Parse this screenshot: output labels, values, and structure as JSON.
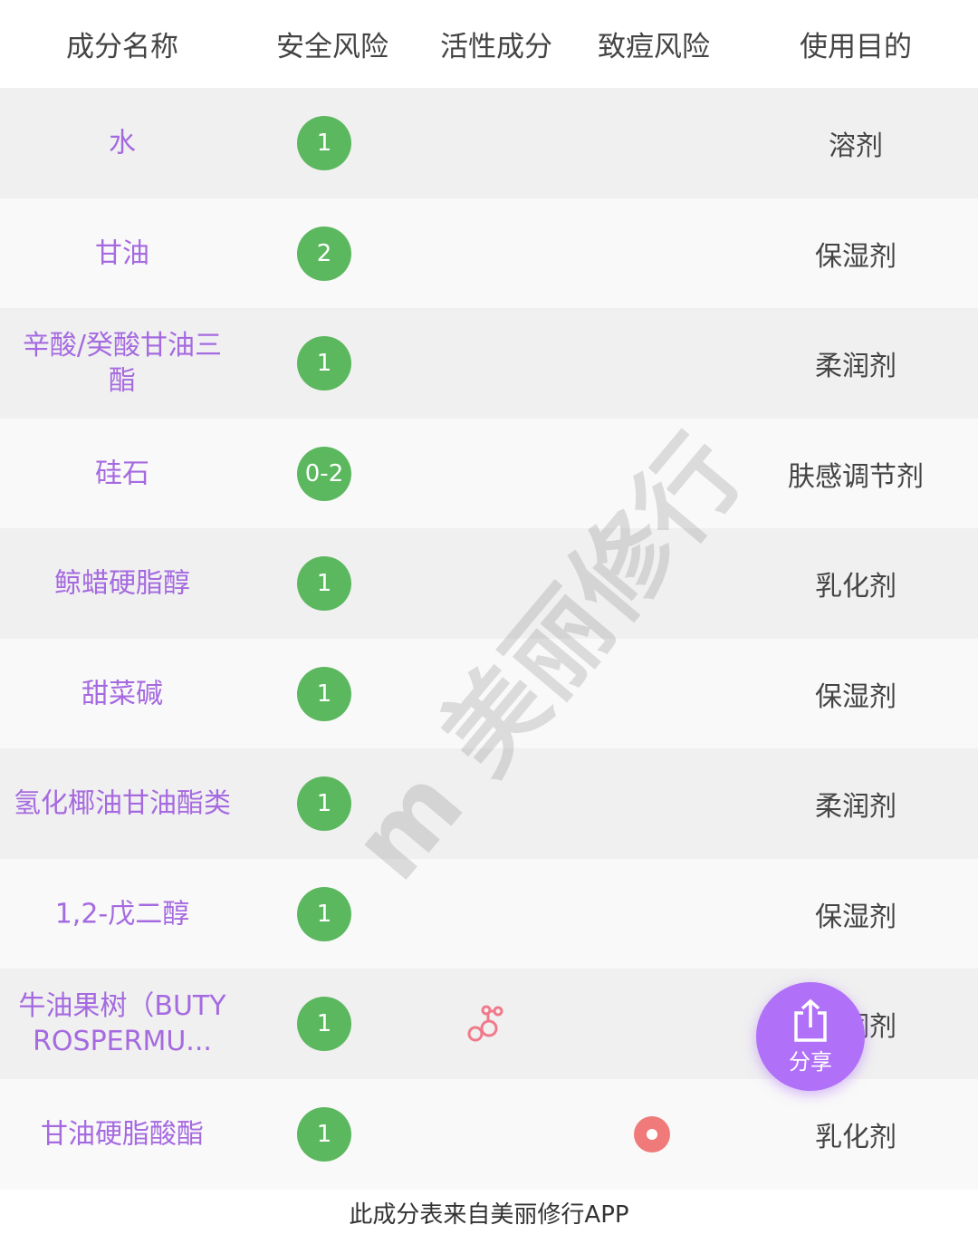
{
  "header": [
    "成分名称",
    "安全风险",
    "活性成分",
    "致痘风险",
    "使用目的"
  ],
  "rows": [
    {
      "name": "水",
      "safety": "1",
      "purpose": "溶剂",
      "active": false,
      "acne": false
    },
    {
      "name": "甘油",
      "safety": "2",
      "purpose": "保湿剂",
      "active": false,
      "acne": false
    },
    {
      "name": "辛酸/癸酸甘油三酯",
      "safety": "1",
      "purpose": "柔润剂",
      "active": false,
      "acne": false
    },
    {
      "name": "硅石",
      "safety": "0-2",
      "purpose": "肤感调节剂",
      "active": false,
      "acne": false
    },
    {
      "name": "鲸蜡硬脂醇",
      "safety": "1",
      "purpose": "乳化剂",
      "active": false,
      "acne": false
    },
    {
      "name": "甜菜碱",
      "safety": "1",
      "purpose": "保湿剂",
      "active": false,
      "acne": false
    },
    {
      "name": "氢化椰油甘油酯类",
      "safety": "1",
      "purpose": "柔润剂",
      "active": false,
      "acne": false
    },
    {
      "name": "1,2-戊二醇",
      "safety": "1",
      "purpose": "保湿剂",
      "active": false,
      "acne": false
    },
    {
      "name": "牛油果树（BUTYROSPERMU...",
      "safety": "1",
      "purpose": "柔润剂",
      "active": true,
      "acne": false
    },
    {
      "name": "甘油硬脂酸酯",
      "safety": "1",
      "purpose": "乳化剂",
      "active": false,
      "acne": true
    }
  ],
  "share": {
    "label": "分享",
    "icon": "share-icon"
  },
  "footer": "此成分表来自美丽修行APP",
  "watermark": "m 美丽修行",
  "colors": {
    "name": "#a56ae0",
    "safety_badge": "#5cb85f",
    "acne": "#f07a7a",
    "share": "#b070f8"
  }
}
